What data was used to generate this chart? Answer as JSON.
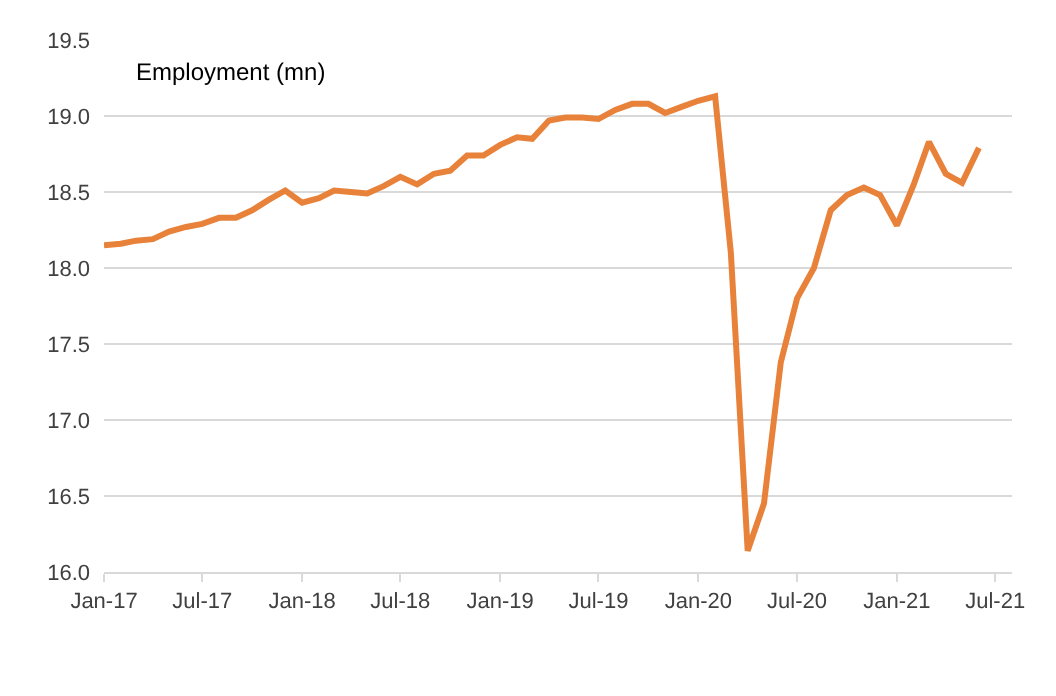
{
  "chart_data": {
    "type": "line",
    "title": "Employment (mn)",
    "x": [
      "2017-01",
      "2017-02",
      "2017-03",
      "2017-04",
      "2017-05",
      "2017-06",
      "2017-07",
      "2017-08",
      "2017-09",
      "2017-10",
      "2017-11",
      "2017-12",
      "2018-01",
      "2018-02",
      "2018-03",
      "2018-04",
      "2018-05",
      "2018-06",
      "2018-07",
      "2018-08",
      "2018-09",
      "2018-10",
      "2018-11",
      "2018-12",
      "2019-01",
      "2019-02",
      "2019-03",
      "2019-04",
      "2019-05",
      "2019-06",
      "2019-07",
      "2019-08",
      "2019-09",
      "2019-10",
      "2019-11",
      "2019-12",
      "2020-01",
      "2020-02",
      "2020-03",
      "2020-04",
      "2020-05",
      "2020-06",
      "2020-07",
      "2020-08",
      "2020-09",
      "2020-10",
      "2020-11",
      "2020-12",
      "2021-01",
      "2021-02",
      "2021-03",
      "2021-04",
      "2021-05",
      "2021-06"
    ],
    "series": [
      {
        "color": "#e8823a",
        "values": [
          18.15,
          18.16,
          18.18,
          18.19,
          18.24,
          18.27,
          18.29,
          18.33,
          18.33,
          18.38,
          18.45,
          18.51,
          18.43,
          18.46,
          18.51,
          18.5,
          18.49,
          18.54,
          18.6,
          18.55,
          18.62,
          18.64,
          18.74,
          18.74,
          18.81,
          18.86,
          18.85,
          18.97,
          18.99,
          18.99,
          18.98,
          19.04,
          19.08,
          19.08,
          19.02,
          19.06,
          19.1,
          19.13,
          18.1,
          16.14,
          16.45,
          17.38,
          17.8,
          18.0,
          18.38,
          18.48,
          18.53,
          18.48,
          18.28,
          18.55,
          18.83,
          18.62,
          18.56,
          18.79
        ]
      }
    ],
    "xlim": [
      "2017-01-01",
      "2021-08-01"
    ],
    "xticks": [
      {
        "value": "2017-01-01",
        "label": "Jan-17"
      },
      {
        "value": "2017-07-01",
        "label": "Jul-17"
      },
      {
        "value": "2018-01-01",
        "label": "Jan-18"
      },
      {
        "value": "2018-07-01",
        "label": "Jul-18"
      },
      {
        "value": "2019-01-01",
        "label": "Jan-19"
      },
      {
        "value": "2019-07-01",
        "label": "Jul-19"
      },
      {
        "value": "2020-01-01",
        "label": "Jan-20"
      },
      {
        "value": "2020-07-01",
        "label": "Jul-20"
      },
      {
        "value": "2021-01-01",
        "label": "Jan-21"
      },
      {
        "value": "2021-07-01",
        "label": "Jul-21"
      }
    ],
    "ylim": [
      16.0,
      19.5
    ],
    "yticks": [
      {
        "value": 16.0,
        "label": "16.0"
      },
      {
        "value": 16.5,
        "label": "16.5"
      },
      {
        "value": 17.0,
        "label": "17.0"
      },
      {
        "value": 17.5,
        "label": "17.5"
      },
      {
        "value": 18.0,
        "label": "18.0"
      },
      {
        "value": 18.5,
        "label": "18.5"
      },
      {
        "value": 19.0,
        "label": "19.0"
      },
      {
        "value": 19.5,
        "label": "19.5"
      }
    ],
    "grid": "y",
    "marker": "none",
    "line_style": "solid"
  }
}
